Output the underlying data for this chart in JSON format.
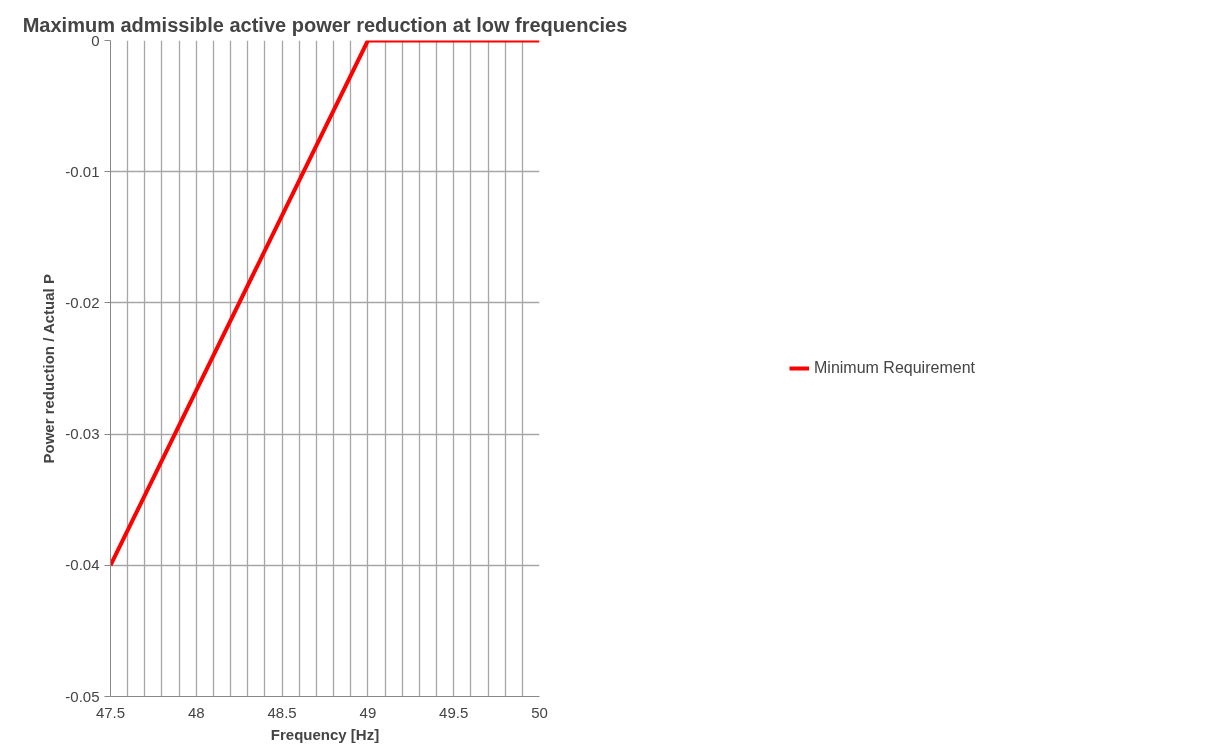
{
  "chart_data": {
    "type": "line",
    "title": "Maximum admissible active power reduction at low frequencies",
    "xlabel": "Frequency [Hz]",
    "ylabel": "Power reduction / Actual P",
    "x": [
      47.5,
      49,
      50
    ],
    "series": [
      {
        "name": "Minimum Requirement",
        "color": "#ff0000",
        "values": [
          -0.04,
          0,
          0
        ]
      }
    ],
    "xlim": [
      47.5,
      50
    ],
    "ylim": [
      -0.05,
      0
    ],
    "xticks": [
      47.5,
      {
        "value": 47.6,
        "label": null
      },
      {
        "value": 47.7,
        "label": null
      },
      {
        "value": 47.8,
        "label": null
      },
      {
        "value": 47.9,
        "label": null
      },
      48,
      {
        "value": 48.1,
        "label": null
      },
      {
        "value": 48.2,
        "label": null
      },
      {
        "value": 48.3,
        "label": null
      },
      {
        "value": 48.4,
        "label": null
      },
      48.5,
      {
        "value": 48.6,
        "label": null
      },
      {
        "value": 48.7,
        "label": null
      },
      {
        "value": 48.8,
        "label": null
      },
      {
        "value": 48.9,
        "label": null
      },
      49,
      {
        "value": 49.1,
        "label": null
      },
      {
        "value": 49.2,
        "label": null
      },
      {
        "value": 49.3,
        "label": null
      },
      {
        "value": 49.4,
        "label": null
      },
      49.5,
      {
        "value": 49.6,
        "label": null
      },
      {
        "value": 49.7,
        "label": null
      },
      {
        "value": 49.8,
        "label": null
      },
      {
        "value": 49.9,
        "label": null
      },
      50
    ],
    "yticks": [
      -0.05,
      -0.04,
      -0.03,
      -0.02,
      -0.01,
      0
    ],
    "grid": true,
    "legend": "right",
    "marker": "none",
    "line_style": "solid"
  }
}
